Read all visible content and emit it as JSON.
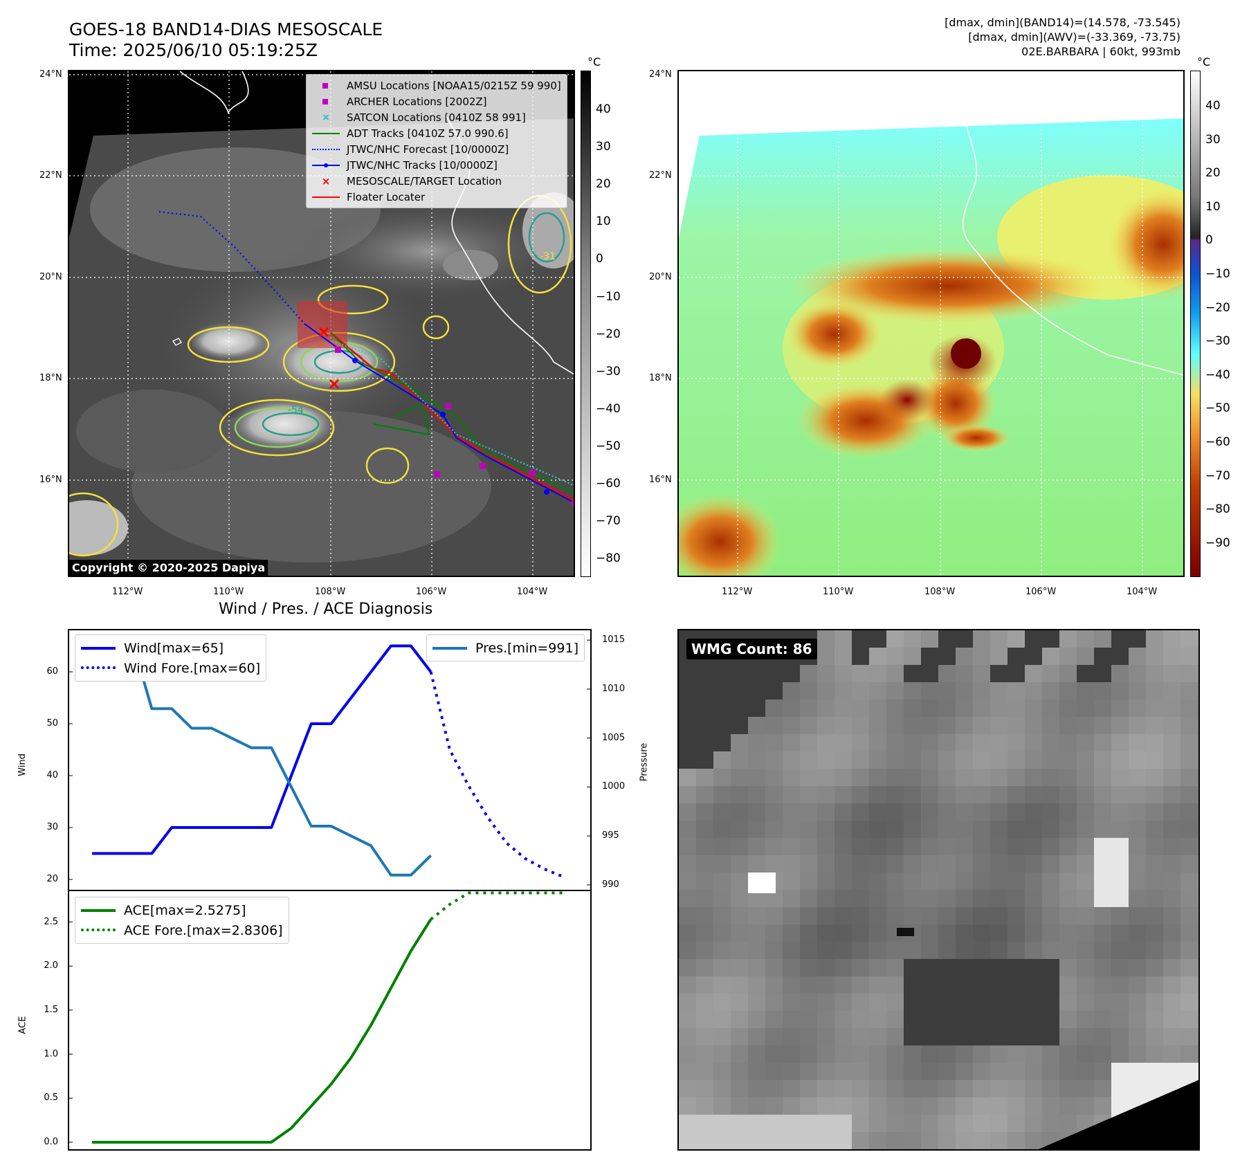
{
  "header": {
    "title_line1": "GOES-18 BAND14-DIAS MESOSCALE",
    "title_line2": "Time: 2025/06/10 05:19:25Z",
    "info_line1": "[dmax, dmin](BAND14)=(14.578, -73.545)",
    "info_line2": "[dmax, dmin](AWV)=(-33.369, -73.75)",
    "info_line3": "02E.BARBARA | 60kt, 993mb"
  },
  "map": {
    "lat_labels": [
      "24°N",
      "22°N",
      "20°N",
      "18°N",
      "16°N"
    ],
    "lon_labels": [
      "112°W",
      "110°W",
      "108°W",
      "106°W",
      "104°W"
    ],
    "copyright": "Copyright © 2020-2025 Dapiya",
    "contour_labels": [
      "-54",
      "-31"
    ],
    "legend": [
      {
        "label": "AMSU Locations [NOAA15/0215Z 59 990]",
        "symbol": "square",
        "color": "#c000c0"
      },
      {
        "label": "ARCHER Locations [2002Z]",
        "symbol": "square",
        "color": "#c000c0"
      },
      {
        "label": "SATCON Locations [0410Z 58 991]",
        "symbol": "x",
        "color": "#20c0c0"
      },
      {
        "label": "ADT Tracks [0410Z 57.0 990.6]",
        "symbol": "line",
        "color": "#008000"
      },
      {
        "label": "JTWC/NHC Forecast [10/0000Z]",
        "symbol": "dotted",
        "color": "#0000ff"
      },
      {
        "label": "JTWC/NHC Tracks [10/0000Z]",
        "symbol": "line-dot",
        "color": "#0000ff"
      },
      {
        "label": "MESOSCALE/TARGET Location",
        "symbol": "x",
        "color": "#ff0000"
      },
      {
        "label": "Floater Locater",
        "symbol": "line",
        "color": "#ff0000"
      }
    ]
  },
  "colorbar_left": {
    "unit": "°C",
    "ticks": [
      "40",
      "30",
      "20",
      "10",
      "0",
      "−10",
      "−20",
      "−30",
      "−40",
      "−50",
      "−60",
      "−70",
      "−80"
    ]
  },
  "colorbar_right": {
    "unit": "°C",
    "ticks": [
      "40",
      "30",
      "20",
      "10",
      "0",
      "−10",
      "−20",
      "−30",
      "−40",
      "−50",
      "−60",
      "−70",
      "−80",
      "−90"
    ]
  },
  "diagnosis": {
    "title": "Wind / Pres. / ACE Diagnosis",
    "wind_ylabel": "Wind",
    "pres_ylabel": "Pressure",
    "ace_ylabel": "ACE",
    "wind_ticks": [
      "60",
      "50",
      "40",
      "30",
      "20"
    ],
    "pres_ticks": [
      "1015",
      "1010",
      "1005",
      "1000",
      "995",
      "990"
    ],
    "ace_ticks": [
      "2.5",
      "2.0",
      "1.5",
      "1.0",
      "0.5",
      "0.0"
    ],
    "legend_wind": "Wind[max=65]",
    "legend_wind_fore": "Wind Fore.[max=60]",
    "legend_pres": "Pres.[min=991]",
    "legend_ace": "ACE[max=2.5275]",
    "legend_ace_fore": "ACE Fore.[max=2.8306]"
  },
  "wmg": {
    "label": "WMG Count: 86"
  },
  "chart_data": [
    {
      "type": "line",
      "title": "Wind / Pres. / ACE Diagnosis",
      "ylabel": "Wind",
      "ylim": [
        18,
        68
      ],
      "series": [
        {
          "name": "Wind[max=65]",
          "values": [
            25,
            25,
            25,
            25,
            30,
            30,
            30,
            30,
            30,
            30,
            40,
            50,
            50,
            55,
            60,
            65,
            65,
            60
          ]
        },
        {
          "name": "Wind Fore.[max=60]",
          "values": [
            60,
            45,
            38,
            32,
            27,
            24,
            22,
            20.5
          ]
        }
      ],
      "color_wind": "#0000ee"
    },
    {
      "type": "line",
      "ylabel": "Pressure",
      "ylim": [
        989.5,
        1016
      ],
      "series": [
        {
          "name": "Pres.[min=991]",
          "values": [
            1015,
            1015,
            1015,
            1008,
            1008,
            1006,
            1006,
            1005,
            1004,
            1004,
            1000,
            996,
            996,
            995,
            994,
            991,
            991,
            993
          ]
        }
      ],
      "color_pres": "#1f77b4"
    },
    {
      "type": "line",
      "ylabel": "ACE",
      "ylim": [
        -0.08,
        2.85
      ],
      "series": [
        {
          "name": "ACE[max=2.5275]",
          "values": [
            0,
            0,
            0,
            0,
            0,
            0,
            0,
            0,
            0,
            0,
            0.16,
            0.41,
            0.66,
            0.96,
            1.33,
            1.75,
            2.17,
            2.53
          ]
        },
        {
          "name": "ACE Fore.[max=2.8306]",
          "values": [
            2.53,
            2.7,
            2.83,
            2.83,
            2.83,
            2.83,
            2.83,
            2.83
          ]
        }
      ],
      "color_ace": "#008000"
    }
  ]
}
